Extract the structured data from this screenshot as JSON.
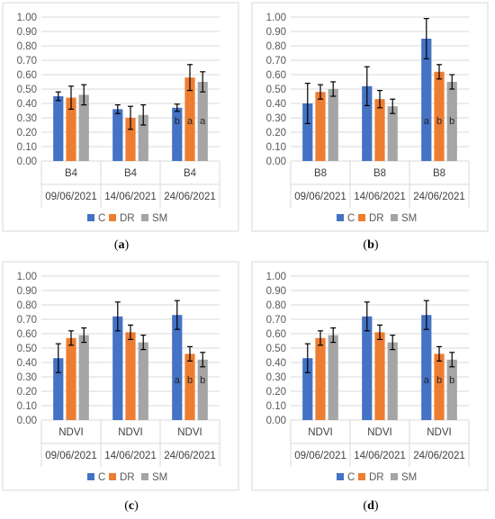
{
  "colors": {
    "C": "#4472c4",
    "DR": "#ed7d31",
    "SM": "#a5a5a5"
  },
  "panel_labels": [
    {
      "open": "(",
      "letter": "a",
      "close": ")"
    },
    {
      "open": "(",
      "letter": "b",
      "close": ")"
    },
    {
      "open": "(",
      "letter": "c",
      "close": ")"
    },
    {
      "open": "(",
      "letter": "d",
      "close": ")"
    }
  ],
  "chart_data": [
    {
      "type": "bar",
      "ylim": [
        0,
        1.0
      ],
      "yticks": [
        "0.00",
        "0.10",
        "0.20",
        "0.30",
        "0.40",
        "0.50",
        "0.60",
        "0.70",
        "0.80",
        "0.90",
        "1.00"
      ],
      "categories": [
        "B4",
        "B4",
        "B4"
      ],
      "dates": [
        "09/06/2021",
        "14/06/2021",
        "24/06/2021"
      ],
      "legend": [
        "C",
        "DR",
        "SM"
      ],
      "legend_position": "bottom",
      "series": [
        {
          "name": "C",
          "values": [
            0.45,
            0.36,
            0.37
          ],
          "errors": [
            0.03,
            0.03,
            0.025
          ],
          "labels": [
            "",
            "",
            "b"
          ]
        },
        {
          "name": "DR",
          "values": [
            0.44,
            0.3,
            0.58
          ],
          "errors": [
            0.08,
            0.08,
            0.09
          ],
          "labels": [
            "",
            "",
            "a"
          ]
        },
        {
          "name": "SM",
          "values": [
            0.46,
            0.32,
            0.55
          ],
          "errors": [
            0.07,
            0.07,
            0.07
          ],
          "labels": [
            "",
            "",
            "a"
          ]
        }
      ]
    },
    {
      "type": "bar",
      "ylim": [
        0,
        1.0
      ],
      "yticks": [
        "0.00",
        "0.10",
        "0.20",
        "0.30",
        "0.40",
        "0.50",
        "0.60",
        "0.70",
        "0.80",
        "0.90",
        "1.00"
      ],
      "categories": [
        "B8",
        "B8",
        "B8"
      ],
      "dates": [
        "09/06/2021",
        "14/06/2021",
        "24/06/2021"
      ],
      "legend": [
        "C",
        "DR",
        "SM"
      ],
      "legend_position": "bottom",
      "series": [
        {
          "name": "C",
          "values": [
            0.4,
            0.52,
            0.85
          ],
          "errors": [
            0.14,
            0.135,
            0.14
          ],
          "labels": [
            "",
            "",
            "a"
          ]
        },
        {
          "name": "DR",
          "values": [
            0.48,
            0.43,
            0.62
          ],
          "errors": [
            0.05,
            0.06,
            0.05
          ],
          "labels": [
            "",
            "",
            "b"
          ]
        },
        {
          "name": "SM",
          "values": [
            0.5,
            0.38,
            0.55
          ],
          "errors": [
            0.05,
            0.05,
            0.05
          ],
          "labels": [
            "",
            "",
            "b"
          ]
        }
      ]
    },
    {
      "type": "bar",
      "ylim": [
        0,
        1.0
      ],
      "yticks": [
        "0.00",
        "0.10",
        "0.20",
        "0.30",
        "0.40",
        "0.50",
        "0.60",
        "0.70",
        "0.80",
        "0.90",
        "1.00"
      ],
      "categories": [
        "NDVI",
        "NDVI",
        "NDVI"
      ],
      "dates": [
        "09/06/2021",
        "14/06/2021",
        "24/06/2021"
      ],
      "legend": [
        "C",
        "DR",
        "SM"
      ],
      "legend_position": "bottom",
      "series": [
        {
          "name": "C",
          "values": [
            0.43,
            0.72,
            0.73
          ],
          "errors": [
            0.1,
            0.1,
            0.1
          ],
          "labels": [
            "",
            "",
            "a"
          ]
        },
        {
          "name": "DR",
          "values": [
            0.57,
            0.61,
            0.46
          ],
          "errors": [
            0.05,
            0.05,
            0.05
          ],
          "labels": [
            "",
            "",
            "b"
          ]
        },
        {
          "name": "SM",
          "values": [
            0.59,
            0.54,
            0.42
          ],
          "errors": [
            0.05,
            0.05,
            0.05
          ],
          "labels": [
            "",
            "",
            "b"
          ]
        }
      ]
    },
    {
      "type": "bar",
      "ylim": [
        0,
        1.0
      ],
      "yticks": [
        "0.00",
        "0.10",
        "0.20",
        "0.30",
        "0.40",
        "0.50",
        "0.60",
        "0.70",
        "0.80",
        "0.90",
        "1.00"
      ],
      "categories": [
        "NDVI",
        "NDVI",
        "NDVI"
      ],
      "dates": [
        "09/06/2021",
        "14/06/2021",
        "24/06/2021"
      ],
      "legend": [
        "C",
        "DR",
        "SM"
      ],
      "legend_position": "bottom",
      "series": [
        {
          "name": "C",
          "values": [
            0.43,
            0.72,
            0.73
          ],
          "errors": [
            0.1,
            0.1,
            0.1
          ],
          "labels": [
            "",
            "",
            "a"
          ]
        },
        {
          "name": "DR",
          "values": [
            0.57,
            0.61,
            0.46
          ],
          "errors": [
            0.05,
            0.05,
            0.05
          ],
          "labels": [
            "",
            "",
            "b"
          ]
        },
        {
          "name": "SM",
          "values": [
            0.59,
            0.54,
            0.42
          ],
          "errors": [
            0.05,
            0.05,
            0.05
          ],
          "labels": [
            "",
            "",
            "b"
          ]
        }
      ]
    }
  ]
}
